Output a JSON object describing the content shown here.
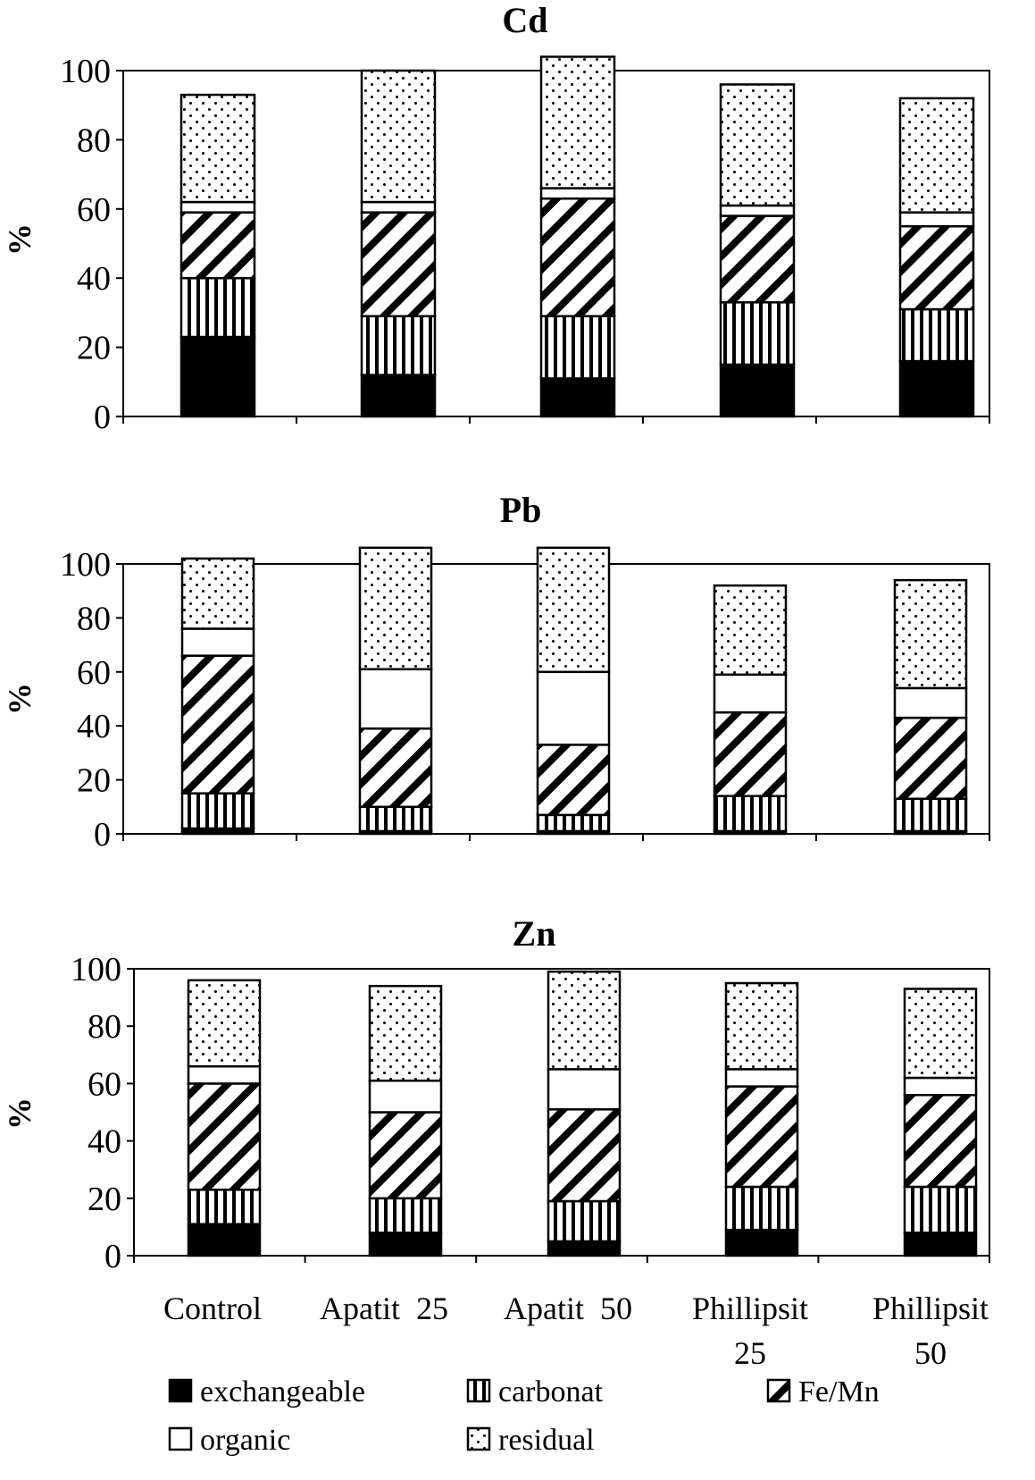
{
  "categories": [
    "Control",
    "Apatit 25",
    "Apatit 50",
    "Phillipsit 25",
    "Phillipsit 50"
  ],
  "category_labels": [
    [
      "Control"
    ],
    [
      "Apatit  25"
    ],
    [
      "Apatit  50"
    ],
    [
      "Phillipsit",
      "25"
    ],
    [
      "Phillipsit",
      "50"
    ]
  ],
  "legend": [
    {
      "key": "exchangeable",
      "label": "exchangeable",
      "pattern": "solid"
    },
    {
      "key": "carbonat",
      "label": "carbonat",
      "pattern": "vertical-lines"
    },
    {
      "key": "femn",
      "label": "Fe/Mn",
      "pattern": "diagonal-hatch"
    },
    {
      "key": "organic",
      "label": "organic",
      "pattern": "white"
    },
    {
      "key": "residual",
      "label": "residual",
      "pattern": "dots"
    }
  ],
  "chart_data": [
    {
      "type": "bar",
      "stacked": true,
      "title": "Cd",
      "ylabel": "%",
      "ylim": [
        0,
        100
      ],
      "yticks": [
        0,
        20,
        40,
        60,
        80,
        100
      ],
      "categories": [
        "Control",
        "Apatit 25",
        "Apatit 50",
        "Phillipsit 25",
        "Phillipsit 50"
      ],
      "series": [
        {
          "name": "exchangeable",
          "values": [
            23,
            12,
            11,
            15,
            16
          ]
        },
        {
          "name": "carbonat",
          "values": [
            17,
            17,
            18,
            18,
            15
          ]
        },
        {
          "name": "Fe/Mn",
          "values": [
            19,
            30,
            34,
            25,
            24
          ]
        },
        {
          "name": "organic",
          "values": [
            3,
            3,
            3,
            3,
            4
          ]
        },
        {
          "name": "residual",
          "values": [
            31,
            38,
            38,
            35,
            33
          ]
        }
      ]
    },
    {
      "type": "bar",
      "stacked": true,
      "title": "Pb",
      "ylabel": "%",
      "ylim": [
        0,
        100
      ],
      "yticks": [
        0,
        20,
        40,
        60,
        80,
        100
      ],
      "categories": [
        "Control",
        "Apatit 25",
        "Apatit 50",
        "Phillipsit 25",
        "Phillipsit 50"
      ],
      "series": [
        {
          "name": "exchangeable",
          "values": [
            2,
            1,
            1,
            1,
            1
          ]
        },
        {
          "name": "carbonat",
          "values": [
            13,
            9,
            6,
            13,
            12
          ]
        },
        {
          "name": "Fe/Mn",
          "values": [
            51,
            29,
            26,
            31,
            30
          ]
        },
        {
          "name": "organic",
          "values": [
            10,
            22,
            27,
            14,
            11
          ]
        },
        {
          "name": "residual",
          "values": [
            26,
            45,
            46,
            33,
            40
          ]
        }
      ]
    },
    {
      "type": "bar",
      "stacked": true,
      "title": "Zn",
      "ylabel": "%",
      "ylim": [
        0,
        100
      ],
      "yticks": [
        0,
        20,
        40,
        60,
        80,
        100
      ],
      "categories": [
        "Control",
        "Apatit 25",
        "Apatit 50",
        "Phillipsit 25",
        "Phillipsit 50"
      ],
      "series": [
        {
          "name": "exchangeable",
          "values": [
            11,
            8,
            5,
            9,
            8
          ]
        },
        {
          "name": "carbonat",
          "values": [
            12,
            12,
            14,
            15,
            16
          ]
        },
        {
          "name": "Fe/Mn",
          "values": [
            37,
            30,
            32,
            35,
            32
          ]
        },
        {
          "name": "organic",
          "values": [
            6,
            11,
            14,
            6,
            6
          ]
        },
        {
          "name": "residual",
          "values": [
            30,
            33,
            34,
            30,
            31
          ]
        }
      ]
    }
  ]
}
